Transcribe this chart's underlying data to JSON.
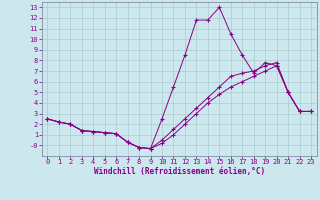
{
  "xlabel": "Windchill (Refroidissement éolien,°C)",
  "bg_color": "#cce8ee",
  "grid_color": "#aacccc",
  "line_color": "#880088",
  "line1_y": [
    2.5,
    2.2,
    2.0,
    1.4,
    1.3,
    1.2,
    1.1,
    0.3,
    -0.2,
    -0.3,
    2.5,
    5.5,
    8.5,
    11.8,
    11.8,
    13.0,
    10.5,
    8.5,
    6.8,
    7.8,
    7.5,
    5.0,
    3.2,
    3.2
  ],
  "line2_y": [
    2.5,
    2.2,
    2.0,
    1.4,
    1.3,
    1.2,
    1.1,
    0.3,
    -0.2,
    -0.3,
    0.5,
    1.5,
    2.5,
    3.5,
    4.5,
    5.5,
    6.5,
    6.8,
    7.0,
    7.5,
    7.8,
    5.0,
    3.2,
    3.2
  ],
  "line3_y": [
    2.5,
    2.2,
    2.0,
    1.4,
    1.3,
    1.2,
    1.1,
    0.3,
    -0.2,
    -0.3,
    0.2,
    1.0,
    2.0,
    3.0,
    4.0,
    4.8,
    5.5,
    6.0,
    6.5,
    7.0,
    7.5,
    5.0,
    3.2,
    3.2
  ],
  "x": [
    0,
    1,
    2,
    3,
    4,
    5,
    6,
    7,
    8,
    9,
    10,
    11,
    12,
    13,
    14,
    15,
    16,
    17,
    18,
    19,
    20,
    21,
    22,
    23
  ],
  "xlim": [
    -0.5,
    23.5
  ],
  "ylim": [
    -1.0,
    13.5
  ],
  "yticks": [
    0,
    1,
    2,
    3,
    4,
    5,
    6,
    7,
    8,
    9,
    10,
    11,
    12,
    13
  ],
  "ytick_labels": [
    "-0",
    "1",
    "2",
    "3",
    "4",
    "5",
    "6",
    "7",
    "8",
    "9",
    "10",
    "11",
    "12",
    "13"
  ],
  "xticks": [
    0,
    1,
    2,
    3,
    4,
    5,
    6,
    7,
    8,
    9,
    10,
    11,
    12,
    13,
    14,
    15,
    16,
    17,
    18,
    19,
    20,
    21,
    22,
    23
  ],
  "font_size": 5.0,
  "xlabel_font_size": 5.5
}
